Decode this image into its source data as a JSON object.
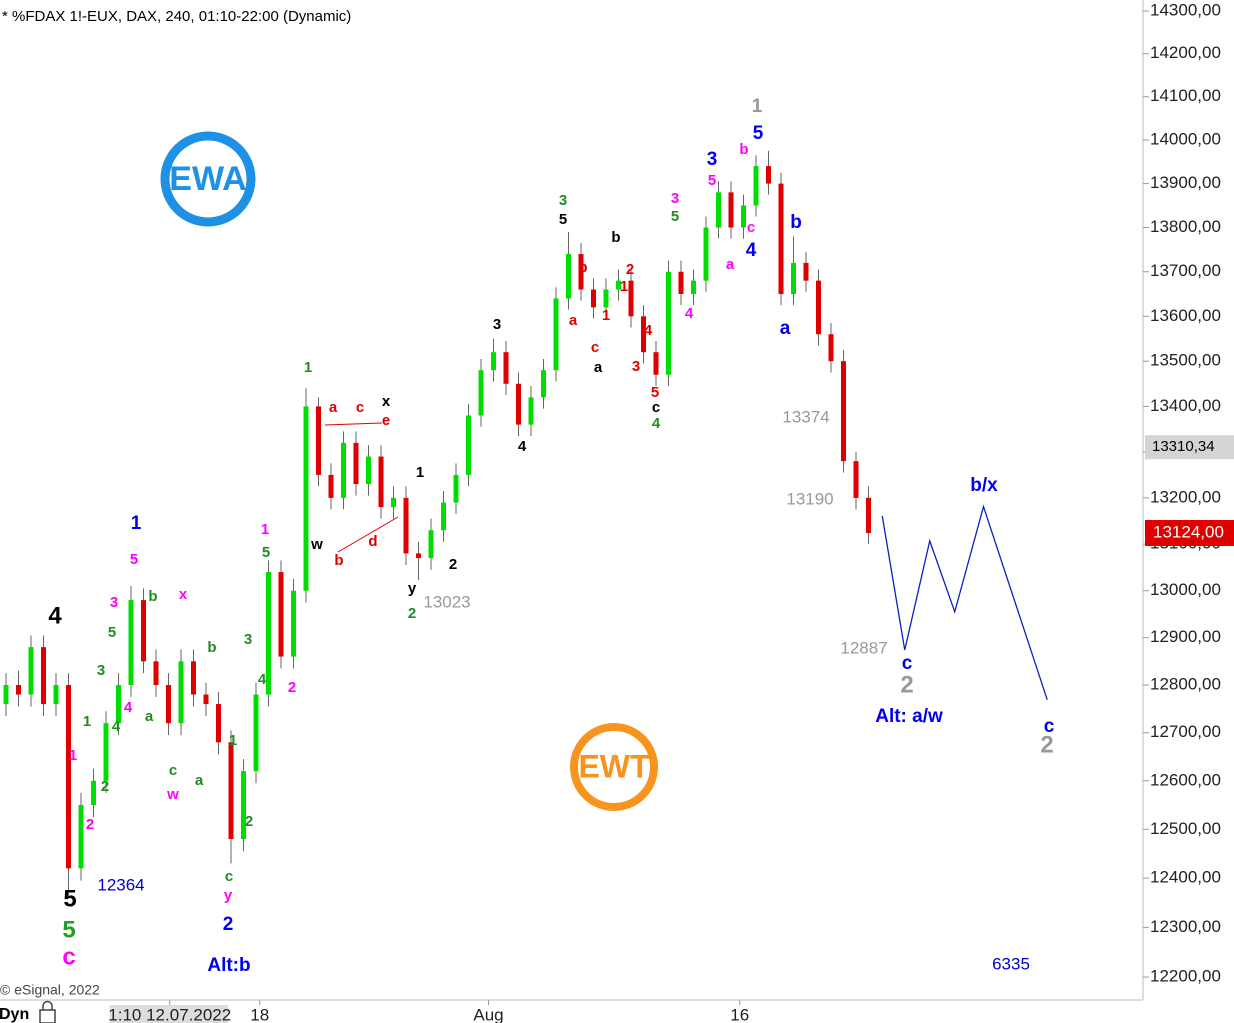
{
  "chart_data": {
    "type": "candlestick",
    "title": "* %FDAX 1!-EUX, DAX, 240, 01:10-22:00 (Dynamic)",
    "footer": "© eSignal, 2022",
    "mode": "Dyn",
    "log_scale": true,
    "up_color": "#00dd00",
    "down_color": "#e00000",
    "xlim": [
      -0.48,
      90.96
    ],
    "ylim": [
      12154,
      14326
    ],
    "yticks": [
      {
        "value": 12200,
        "label": "12200,00"
      },
      {
        "value": 12300,
        "label": "12300,00"
      },
      {
        "value": 12400,
        "label": "12400,00"
      },
      {
        "value": 12500,
        "label": "12500,00"
      },
      {
        "value": 12600,
        "label": "12600,00"
      },
      {
        "value": 12700,
        "label": "12700,00"
      },
      {
        "value": 12800,
        "label": "12800,00"
      },
      {
        "value": 12900,
        "label": "12900,00"
      },
      {
        "value": 13000,
        "label": "13000,00"
      },
      {
        "value": 13100,
        "label": "13100,00"
      },
      {
        "value": 13200,
        "label": "13200,00"
      },
      {
        "value": 13300,
        "label": "13300,00"
      },
      {
        "value": 13400,
        "label": "13400,00"
      },
      {
        "value": 13500,
        "label": "13500,00"
      },
      {
        "value": 13600,
        "label": "13600,00"
      },
      {
        "value": 13700,
        "label": "13700,00"
      },
      {
        "value": 13800,
        "label": "13800,00"
      },
      {
        "value": 13900,
        "label": "13900,00"
      },
      {
        "value": 14000,
        "label": "14000,00"
      },
      {
        "value": 14100,
        "label": "14100,00"
      },
      {
        "value": 14200,
        "label": "14200,00"
      },
      {
        "value": 14300,
        "label": "14300,00"
      }
    ],
    "xticks": [
      {
        "value": 13.1,
        "label": "1:10 12.07.2022"
      },
      {
        "value": 20.3,
        "label": "18"
      },
      {
        "value": 38.6,
        "label": "Aug"
      },
      {
        "value": 58.7,
        "label": "16"
      }
    ],
    "marker_price": {
      "value": 13310.34,
      "label": "13310,34"
    },
    "last_price": {
      "value": 13124,
      "label": "13124,00"
    },
    "open": [
      12760,
      12800,
      12780,
      12880,
      12760,
      12800,
      12420,
      12550,
      12600,
      12720,
      12800,
      12980,
      12850,
      12800,
      12720,
      12850,
      12780,
      12760,
      12680,
      12480,
      12620,
      12780,
      13040,
      12860,
      13000,
      13400,
      13250,
      13200,
      13320,
      13230,
      13290,
      13180,
      13200,
      13080,
      13070,
      13130,
      13190,
      13250,
      13380,
      13480,
      13520,
      13450,
      13360,
      13420,
      13480,
      13640,
      13740,
      13660,
      13620,
      13660,
      13680,
      13600,
      13520,
      13470,
      13700,
      13650,
      13680,
      13800,
      13880,
      13800,
      13850,
      13940,
      13900,
      13650,
      13720,
      13680,
      13560,
      13500,
      13280,
      13200
    ],
    "high": [
      12825,
      12830,
      12905,
      12905,
      12825,
      12825,
      12575,
      12625,
      12745,
      12825,
      13010,
      13005,
      12875,
      12825,
      12875,
      12875,
      12805,
      12785,
      12705,
      12645,
      12805,
      13065,
      13065,
      13025,
      13440,
      13420,
      13275,
      13345,
      13345,
      13315,
      13315,
      13225,
      13225,
      13105,
      13155,
      13215,
      13275,
      13405,
      13505,
      13550,
      13545,
      13475,
      13445,
      13505,
      13665,
      13790,
      13765,
      13685,
      13685,
      13705,
      13705,
      13625,
      13545,
      13725,
      13725,
      13705,
      13825,
      13905,
      13905,
      13875,
      13965,
      13975,
      13925,
      13780,
      13745,
      13705,
      13585,
      13525,
      13300,
      13225
    ],
    "low": [
      12735,
      12755,
      12755,
      12735,
      12735,
      12364,
      12395,
      12525,
      12575,
      12695,
      12775,
      12825,
      12775,
      12695,
      12695,
      12755,
      12735,
      12655,
      12430,
      12455,
      12595,
      12755,
      12835,
      12835,
      12975,
      13225,
      13175,
      13175,
      13205,
      13205,
      13155,
      13155,
      13055,
      13023,
      13045,
      13105,
      13165,
      13225,
      13355,
      13455,
      13425,
      13335,
      13335,
      13395,
      13455,
      13615,
      13635,
      13595,
      13595,
      13635,
      13575,
      13495,
      13445,
      13445,
      13625,
      13625,
      13655,
      13775,
      13775,
      13775,
      13825,
      13875,
      13625,
      13625,
      13655,
      13535,
      13475,
      13255,
      13175,
      13100
    ],
    "close": [
      12800,
      12780,
      12880,
      12760,
      12800,
      12420,
      12550,
      12600,
      12720,
      12800,
      12980,
      12850,
      12800,
      12720,
      12850,
      12780,
      12760,
      12680,
      12480,
      12620,
      12780,
      13040,
      12860,
      13000,
      13400,
      13250,
      13200,
      13320,
      13230,
      13290,
      13180,
      13200,
      13080,
      13070,
      13130,
      13190,
      13250,
      13380,
      13480,
      13520,
      13450,
      13360,
      13420,
      13480,
      13640,
      13740,
      13660,
      13620,
      13660,
      13680,
      13600,
      13520,
      13470,
      13700,
      13650,
      13680,
      13800,
      13880,
      13800,
      13850,
      13940,
      13900,
      13650,
      13720,
      13680,
      13560,
      13500,
      13280,
      13200,
      13124
    ],
    "projection": {
      "color": "#1020c0",
      "x": [
        70.1,
        71.9,
        73.9,
        75.9,
        78.2,
        83.3
      ],
      "values": [
        13161,
        12874,
        13107,
        12955,
        13181,
        12769
      ]
    },
    "logos": [
      "EWA",
      "EWT"
    ],
    "annotations": [
      {
        "text": "4",
        "color": "#000000"
      },
      {
        "text": "5",
        "color": "#000000"
      },
      {
        "text": "5",
        "color": "#22a022"
      },
      {
        "text": "c",
        "color": "#ff00ff"
      },
      {
        "text": "12364",
        "color": "#0000cc"
      },
      {
        "text": "1",
        "color": "#0000ee"
      },
      {
        "text": "5",
        "color": "#ff00ff"
      },
      {
        "text": "3",
        "color": "#ff00ff"
      },
      {
        "text": "b",
        "color": "#228b22"
      },
      {
        "text": "x",
        "color": "#ff00ff"
      },
      {
        "text": "5",
        "color": "#228b22"
      },
      {
        "text": "3",
        "color": "#228b22"
      },
      {
        "text": "4",
        "color": "#ff00ff"
      },
      {
        "text": "1",
        "color": "#228b22"
      },
      {
        "text": "4",
        "color": "#228b22"
      },
      {
        "text": "a",
        "color": "#228b22"
      },
      {
        "text": "1",
        "color": "#ff00ff"
      },
      {
        "text": "2",
        "color": "#228b22"
      },
      {
        "text": "2",
        "color": "#ff00ff"
      },
      {
        "text": "c",
        "color": "#228b22"
      },
      {
        "text": "w",
        "color": "#ff00ff"
      },
      {
        "text": "a",
        "color": "#228b22"
      },
      {
        "text": "b",
        "color": "#228b22"
      },
      {
        "text": "3",
        "color": "#228b22"
      },
      {
        "text": "4",
        "color": "#228b22"
      },
      {
        "text": "1",
        "color": "#228b22"
      },
      {
        "text": "2",
        "color": "#228b22"
      },
      {
        "text": "c",
        "color": "#228b22"
      },
      {
        "text": "y",
        "color": "#ff00ff"
      },
      {
        "text": "2",
        "color": "#0000ee"
      },
      {
        "text": "Alt:b",
        "color": "#0000ee"
      },
      {
        "text": "1",
        "color": "#ff00ff"
      },
      {
        "text": "5",
        "color": "#228b22"
      },
      {
        "text": "2",
        "color": "#ff00ff"
      },
      {
        "text": "1",
        "color": "#228b22"
      },
      {
        "text": "a",
        "color": "#e00000"
      },
      {
        "text": "c",
        "color": "#e00000"
      },
      {
        "text": "x",
        "color": "#000000"
      },
      {
        "text": "e",
        "color": "#e00000"
      },
      {
        "text": "w",
        "color": "#000000"
      },
      {
        "text": "b",
        "color": "#e00000"
      },
      {
        "text": "d",
        "color": "#e00000"
      },
      {
        "text": "1",
        "color": "#000000"
      },
      {
        "text": "y",
        "color": "#000000"
      },
      {
        "text": "2",
        "color": "#228b22"
      },
      {
        "text": "13023",
        "color": "#999999"
      },
      {
        "text": "2",
        "color": "#000000"
      },
      {
        "text": "3",
        "color": "#000000"
      },
      {
        "text": "4",
        "color": "#000000"
      },
      {
        "text": "3",
        "color": "#228b22"
      },
      {
        "text": "5",
        "color": "#000000"
      },
      {
        "text": "b",
        "color": "#000000"
      },
      {
        "text": "b",
        "color": "#e00000"
      },
      {
        "text": "2",
        "color": "#e00000"
      },
      {
        "text": "1",
        "color": "#e00000"
      },
      {
        "text": "a",
        "color": "#e00000"
      },
      {
        "text": "1",
        "color": "#e00000"
      },
      {
        "text": "4",
        "color": "#e00000"
      },
      {
        "text": "c",
        "color": "#e00000"
      },
      {
        "text": "a",
        "color": "#000000"
      },
      {
        "text": "3",
        "color": "#e00000"
      },
      {
        "text": "5",
        "color": "#e00000"
      },
      {
        "text": "c",
        "color": "#000000"
      },
      {
        "text": "4",
        "color": "#228b22"
      },
      {
        "text": "3",
        "color": "#ff00ff"
      },
      {
        "text": "5",
        "color": "#228b22"
      },
      {
        "text": "4",
        "color": "#ff00ff"
      },
      {
        "text": "3",
        "color": "#0000ee"
      },
      {
        "text": "5",
        "color": "#ff00ff"
      },
      {
        "text": "a",
        "color": "#ff00ff"
      },
      {
        "text": "c",
        "color": "#ff00ff"
      },
      {
        "text": "4",
        "color": "#0000ee"
      },
      {
        "text": "b",
        "color": "#ff00ff"
      },
      {
        "text": "1",
        "color": "#999999"
      },
      {
        "text": "5",
        "color": "#0000ee"
      },
      {
        "text": "b",
        "color": "#0000ee"
      },
      {
        "text": "a",
        "color": "#0000ee"
      },
      {
        "text": "13374",
        "color": "#999999"
      },
      {
        "text": "13190",
        "color": "#999999"
      },
      {
        "text": "12887",
        "color": "#999999"
      },
      {
        "text": "c",
        "color": "#0000ee"
      },
      {
        "text": "2",
        "color": "#999999"
      },
      {
        "text": "Alt: a/w",
        "color": "#0000ee"
      },
      {
        "text": "b/x",
        "color": "#0000ee"
      },
      {
        "text": "c",
        "color": "#0000ee"
      },
      {
        "text": "2",
        "color": "#999999"
      },
      {
        "text": "6335",
        "color": "#0000cc"
      }
    ]
  }
}
